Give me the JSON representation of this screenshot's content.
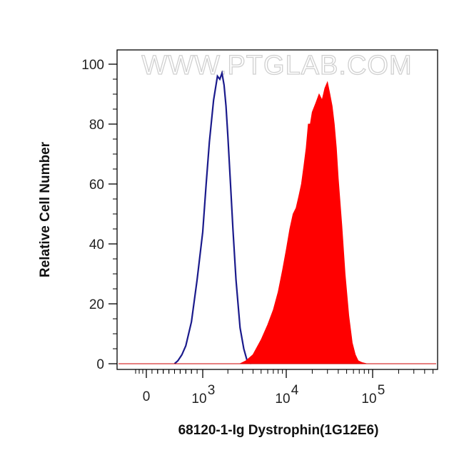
{
  "watermark": "WWW.PTGLAB.COM",
  "chart_data": {
    "type": "area",
    "title": "",
    "xlabel": "68120-1-Ig Dystrophin(1G12E6)",
    "ylabel": "Relative Cell Number",
    "x_scale": "biexponential",
    "xlim": [
      -400,
      500000
    ],
    "ylim": [
      0,
      100
    ],
    "x_ticks": [
      {
        "value": 0,
        "label": "0"
      },
      {
        "value": 1000,
        "base": "10",
        "exp": "3"
      },
      {
        "value": 10000,
        "base": "10",
        "exp": "4"
      },
      {
        "value": 100000,
        "base": "10",
        "exp": "5"
      }
    ],
    "y_ticks": [
      0,
      20,
      40,
      60,
      80,
      100
    ],
    "grid": false,
    "legend": "none",
    "series": [
      {
        "style": "outline",
        "color": "#1a1a8c",
        "x": [
          500,
          560,
          630,
          700,
          800,
          900,
          1000,
          1100,
          1200,
          1350,
          1500,
          1600,
          1700,
          1800,
          1900,
          2000,
          2150,
          2300,
          2500,
          2800,
          3100,
          3400,
          3800
        ],
        "y": [
          0,
          1,
          3,
          6,
          14,
          28,
          44,
          60,
          74,
          88,
          96,
          95,
          97,
          93,
          86,
          76,
          60,
          45,
          28,
          12,
          5,
          1,
          0
        ]
      },
      {
        "style": "filled",
        "color": "#ff0000",
        "x": [
          2800,
          3300,
          4000,
          5000,
          6000,
          7000,
          8000,
          9000,
          10000,
          11000,
          12000,
          13000,
          14000,
          15000,
          16000,
          17000,
          18000,
          19000,
          20000,
          22000,
          24000,
          26000,
          28000,
          30000,
          32000,
          34000,
          36000,
          38000,
          40000,
          44000,
          48000,
          53000,
          58000,
          63000,
          68000,
          75000,
          85000
        ],
        "y": [
          0,
          1,
          3,
          8,
          13,
          18,
          24,
          31,
          38,
          45,
          50,
          52,
          56,
          60,
          66,
          72,
          80,
          80,
          84,
          87,
          90,
          88,
          92,
          94,
          90,
          86,
          80,
          72,
          62,
          46,
          30,
          16,
          7,
          3,
          1,
          0.4,
          0
        ]
      }
    ]
  }
}
